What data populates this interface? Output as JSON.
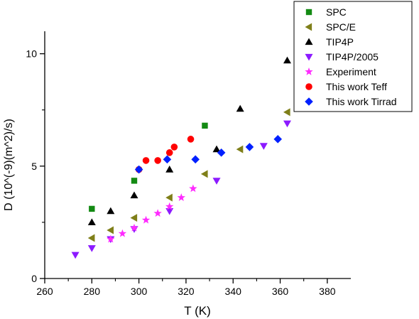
{
  "chart_data": {
    "type": "scatter",
    "xlabel": "T (K)",
    "ylabel": "D (10^(-9)(m^2)/s)",
    "xlim": [
      260,
      390
    ],
    "ylim": [
      0,
      11.0
    ],
    "x_ticks": [
      260,
      280,
      300,
      320,
      340,
      360,
      380
    ],
    "y_ticks": [
      0,
      5,
      10
    ],
    "grid": false,
    "legend_position": "top-right",
    "series": [
      {
        "name": "SPC",
        "marker": "square",
        "color": "#138a13",
        "points": [
          [
            280,
            3.1
          ],
          [
            298,
            4.35
          ],
          [
            328,
            6.8
          ]
        ]
      },
      {
        "name": "SPC/E",
        "marker": "triangle-left",
        "color": "#7f7f19",
        "points": [
          [
            280,
            1.8
          ],
          [
            288,
            2.15
          ],
          [
            298,
            2.7
          ],
          [
            313,
            3.6
          ],
          [
            328,
            4.65
          ],
          [
            343,
            5.75
          ],
          [
            363,
            7.4
          ]
        ]
      },
      {
        "name": "TIP4P",
        "marker": "triangle-up",
        "color": "#000000",
        "points": [
          [
            280,
            2.5
          ],
          [
            288,
            3.0
          ],
          [
            298,
            3.7
          ],
          [
            313,
            4.85
          ],
          [
            333,
            5.75
          ],
          [
            343,
            7.55
          ],
          [
            363,
            9.7
          ]
        ]
      },
      {
        "name": "TIP4P/2005",
        "marker": "triangle-down",
        "color": "#8c1aff",
        "points": [
          [
            273,
            1.05
          ],
          [
            280,
            1.35
          ],
          [
            288,
            1.75
          ],
          [
            298,
            2.2
          ],
          [
            313,
            3.0
          ],
          [
            333,
            4.35
          ],
          [
            353,
            5.9
          ],
          [
            363,
            6.9
          ]
        ]
      },
      {
        "name": "Experiment",
        "marker": "star",
        "color": "#ff2bff",
        "points": [
          [
            288,
            1.75
          ],
          [
            293,
            2.0
          ],
          [
            298,
            2.25
          ],
          [
            303,
            2.6
          ],
          [
            308,
            2.9
          ],
          [
            313,
            3.2
          ],
          [
            318,
            3.6
          ],
          [
            323,
            4.0
          ]
        ]
      },
      {
        "name": "This work Teff",
        "marker": "circle",
        "color": "#ff0000",
        "points": [
          [
            300,
            4.85
          ],
          [
            303,
            5.25
          ],
          [
            308,
            5.25
          ],
          [
            313,
            5.6
          ],
          [
            315,
            5.85
          ],
          [
            322,
            6.2
          ]
        ]
      },
      {
        "name": "This work Tirrad",
        "marker": "diamond",
        "color": "#0020ff",
        "points": [
          [
            300,
            4.85
          ],
          [
            312,
            5.3
          ],
          [
            324,
            5.3
          ],
          [
            335,
            5.6
          ],
          [
            347,
            5.85
          ],
          [
            359,
            6.2
          ]
        ]
      }
    ]
  }
}
